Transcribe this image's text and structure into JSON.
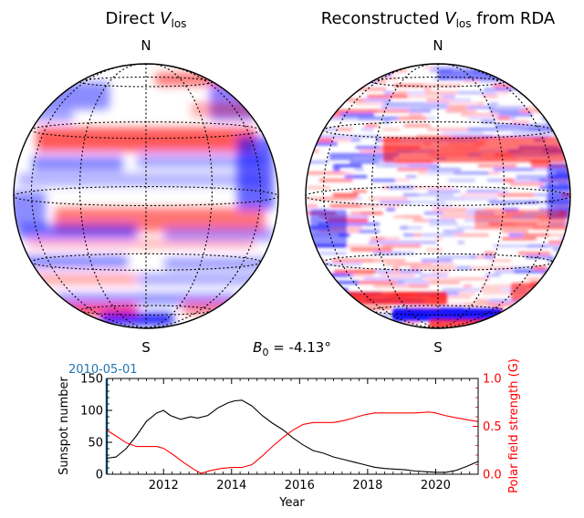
{
  "panels": {
    "left": {
      "title_main": "Direct ",
      "title_var": "V",
      "title_sub": "los",
      "north": "N",
      "south": "S"
    },
    "right": {
      "title_main": "Reconstructed ",
      "title_var": "V",
      "title_sub": "los",
      "title_suffix": " from RDA",
      "north": "N",
      "south": "S"
    }
  },
  "b0": {
    "symbol": "B",
    "sub": "0",
    "text": " = -4.13°"
  },
  "colors": {
    "positive": "#ff0000",
    "negative": "#0000ff",
    "sunspot": "#000000",
    "polar": "#ff0000",
    "date": "#1f77b4"
  },
  "chart_data": {
    "type": "line",
    "date_label": "2010-05-01",
    "xlabel": "Year",
    "ylabel_left": "Sunspot number",
    "ylabel_right": "Polar field strength (G)",
    "xlim": [
      2010.33,
      2021.25
    ],
    "ylim_left": [
      0,
      150
    ],
    "ylim_right": [
      0,
      1.0
    ],
    "xticks": [
      2012,
      2014,
      2016,
      2018,
      2020
    ],
    "xtick_labels": [
      "2012",
      "2014",
      "2016",
      "2018",
      "2020"
    ],
    "yticks_left": [
      0,
      50,
      100,
      150
    ],
    "yticks_left_labels": [
      "0",
      "50",
      "100",
      "150"
    ],
    "yticks_right": [
      0.0,
      0.5,
      1.0
    ],
    "yticks_right_labels": [
      "0.0",
      "0.5",
      "1.0"
    ],
    "series": [
      {
        "name": "Sunspot number",
        "axis": "left",
        "x": [
          2010.33,
          2010.6,
          2010.9,
          2011.2,
          2011.5,
          2011.8,
          2012.0,
          2012.2,
          2012.5,
          2012.8,
          2013.0,
          2013.3,
          2013.6,
          2013.9,
          2014.1,
          2014.3,
          2014.6,
          2014.9,
          2015.2,
          2015.5,
          2015.8,
          2016.1,
          2016.4,
          2016.7,
          2017.0,
          2017.3,
          2017.6,
          2017.9,
          2018.2,
          2018.5,
          2018.8,
          2019.1,
          2019.4,
          2019.7,
          2020.0,
          2020.3,
          2020.6,
          2020.9,
          2021.25
        ],
        "values": [
          25,
          27,
          40,
          60,
          83,
          96,
          100,
          92,
          86,
          90,
          88,
          92,
          104,
          112,
          115,
          116,
          107,
          92,
          80,
          70,
          57,
          46,
          37,
          33,
          27,
          23,
          19,
          15,
          11,
          9,
          8,
          7,
          5,
          4,
          3,
          3,
          6,
          12,
          20
        ]
      },
      {
        "name": "Polar field strength",
        "axis": "right",
        "x": [
          2010.33,
          2010.6,
          2010.9,
          2011.2,
          2011.5,
          2011.8,
          2012.0,
          2012.3,
          2012.6,
          2012.9,
          2013.1,
          2013.4,
          2013.7,
          2014.0,
          2014.3,
          2014.6,
          2014.9,
          2015.2,
          2015.5,
          2015.8,
          2016.1,
          2016.4,
          2016.7,
          2017.0,
          2017.3,
          2017.6,
          2017.9,
          2018.2,
          2018.6,
          2019.0,
          2019.4,
          2019.8,
          2020.0,
          2020.3,
          2020.6,
          2020.9,
          2021.25
        ],
        "values": [
          0.46,
          0.4,
          0.33,
          0.29,
          0.29,
          0.29,
          0.27,
          0.2,
          0.12,
          0.05,
          0.01,
          0.04,
          0.06,
          0.07,
          0.07,
          0.1,
          0.19,
          0.29,
          0.38,
          0.46,
          0.52,
          0.54,
          0.54,
          0.54,
          0.56,
          0.59,
          0.62,
          0.64,
          0.64,
          0.64,
          0.64,
          0.65,
          0.64,
          0.61,
          0.59,
          0.57,
          0.55
        ]
      }
    ]
  }
}
